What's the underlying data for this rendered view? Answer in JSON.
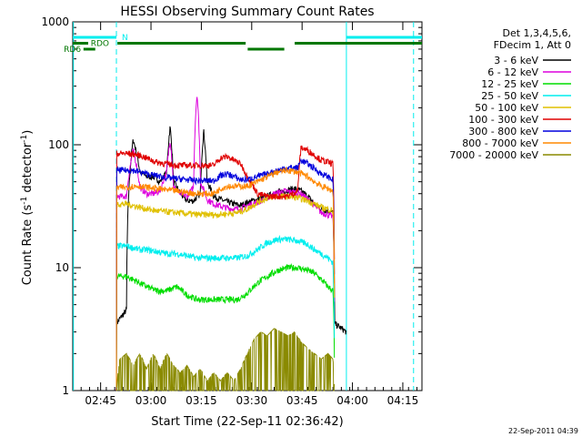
{
  "chart_data": {
    "type": "line",
    "title": "HESSI Observing Summary Count Rates",
    "xlabel": "Start Time (22-Sep-11 02:36:42)",
    "ylabel_main": "Count Rate (s",
    "ylabel_sup": "-1",
    "ylabel_mid": " detector",
    "ylabel_sup2": "-1",
    "ylabel_end": ")",
    "y_scale": "log",
    "ylim": [
      1,
      1000
    ],
    "xlim_minutes": [
      0,
      104
    ],
    "x_ticks": [
      {
        "label": "02:45",
        "minute": 8.3
      },
      {
        "label": "03:00",
        "minute": 23.3
      },
      {
        "label": "03:15",
        "minute": 38.3
      },
      {
        "label": "03:30",
        "minute": 53.3
      },
      {
        "label": "03:45",
        "minute": 68.3
      },
      {
        "label": "04:00",
        "minute": 83.3
      },
      {
        "label": "04:15",
        "minute": 98.3
      }
    ],
    "y_ticks": [
      {
        "label": "1",
        "value": 1
      },
      {
        "label": "10",
        "value": 10
      },
      {
        "label": "100",
        "value": 100
      },
      {
        "label": "1000",
        "value": 1000
      }
    ],
    "legend_header": [
      "Det 1,3,4,5,6,",
      "FDecim 1, Att 0"
    ],
    "data_window_minutes": [
      13.0,
      81.5
    ],
    "series": [
      {
        "name": "3 - 6 keV",
        "color": "#000000",
        "points": [
          [
            13.0,
            3.5
          ],
          [
            16.0,
            4.5
          ],
          [
            18.0,
            110
          ],
          [
            20.0,
            60
          ],
          [
            22,
            55
          ],
          [
            24,
            55
          ],
          [
            26,
            50
          ],
          [
            28,
            60
          ],
          [
            29,
            140
          ],
          [
            30,
            50
          ],
          [
            32,
            40
          ],
          [
            34,
            35
          ],
          [
            36,
            35
          ],
          [
            38,
            40
          ],
          [
            39,
            130
          ],
          [
            40,
            50
          ],
          [
            42,
            38
          ],
          [
            45,
            35
          ],
          [
            48,
            33
          ],
          [
            50,
            32
          ],
          [
            52,
            34
          ],
          [
            55,
            36
          ],
          [
            58,
            38
          ],
          [
            60,
            40
          ],
          [
            63,
            42
          ],
          [
            66,
            44
          ],
          [
            68,
            42
          ],
          [
            70,
            38
          ],
          [
            72,
            33
          ],
          [
            74,
            30
          ],
          [
            76,
            29
          ],
          [
            77.5,
            28
          ],
          [
            78,
            3.5
          ],
          [
            81.5,
            3.0
          ]
        ]
      },
      {
        "name": "6 - 12 keV",
        "color": "#dd00dd",
        "points": [
          [
            13.0,
            0
          ],
          [
            13.1,
            38
          ],
          [
            16,
            38
          ],
          [
            18,
            90
          ],
          [
            20,
            45
          ],
          [
            22,
            40
          ],
          [
            24,
            40
          ],
          [
            26,
            42
          ],
          [
            28,
            60
          ],
          [
            29,
            110
          ],
          [
            30,
            45
          ],
          [
            32,
            40
          ],
          [
            34,
            38
          ],
          [
            36,
            45
          ],
          [
            37,
            260
          ],
          [
            38,
            50
          ],
          [
            40,
            36
          ],
          [
            42,
            33
          ],
          [
            45,
            31
          ],
          [
            48,
            30
          ],
          [
            50,
            30
          ],
          [
            52,
            32
          ],
          [
            55,
            34
          ],
          [
            58,
            37
          ],
          [
            60,
            40
          ],
          [
            63,
            42
          ],
          [
            66,
            41
          ],
          [
            68,
            40
          ],
          [
            70,
            36
          ],
          [
            72,
            32
          ],
          [
            74,
            28
          ],
          [
            76,
            27
          ],
          [
            77.5,
            26
          ],
          [
            78,
            1
          ]
        ]
      },
      {
        "name": "12 - 25 keV",
        "color": "#00dd00",
        "points": [
          [
            13.0,
            1
          ],
          [
            13.1,
            8.5
          ],
          [
            16,
            8.5
          ],
          [
            18,
            8
          ],
          [
            20,
            7.5
          ],
          [
            22,
            7
          ],
          [
            25,
            6.5
          ],
          [
            28,
            6.5
          ],
          [
            31,
            7
          ],
          [
            34,
            6
          ],
          [
            37,
            5.5
          ],
          [
            40,
            5.5
          ],
          [
            43,
            5.5
          ],
          [
            46,
            5.5
          ],
          [
            49,
            5.5
          ],
          [
            52,
            6.2
          ],
          [
            55,
            7.5
          ],
          [
            58,
            8.5
          ],
          [
            61,
            9.5
          ],
          [
            64,
            10
          ],
          [
            67,
            10
          ],
          [
            70,
            9.5
          ],
          [
            72,
            9
          ],
          [
            74,
            8
          ],
          [
            76,
            7
          ],
          [
            77.5,
            6.5
          ],
          [
            78,
            1
          ]
        ]
      },
      {
        "name": "25 - 50 keV",
        "color": "#00eeee",
        "points": [
          [
            13.0,
            1
          ],
          [
            13.1,
            15
          ],
          [
            16,
            15
          ],
          [
            18,
            14.5
          ],
          [
            20,
            14
          ],
          [
            22,
            14
          ],
          [
            25,
            13.5
          ],
          [
            28,
            13
          ],
          [
            31,
            13
          ],
          [
            34,
            12.5
          ],
          [
            37,
            12
          ],
          [
            40,
            12
          ],
          [
            43,
            12
          ],
          [
            46,
            12
          ],
          [
            49,
            12
          ],
          [
            52,
            12.5
          ],
          [
            55,
            14
          ],
          [
            58,
            16
          ],
          [
            61,
            17
          ],
          [
            64,
            17
          ],
          [
            67,
            16.5
          ],
          [
            70,
            15.5
          ],
          [
            72,
            14
          ],
          [
            74,
            13
          ],
          [
            76,
            12
          ],
          [
            77.5,
            11
          ],
          [
            78,
            1
          ]
        ]
      },
      {
        "name": "50 - 100 keV",
        "color": "#e0c000",
        "points": [
          [
            13.0,
            1
          ],
          [
            13.1,
            33
          ],
          [
            16,
            33
          ],
          [
            18,
            32
          ],
          [
            20,
            31
          ],
          [
            22,
            30
          ],
          [
            25,
            29
          ],
          [
            28,
            28.5
          ],
          [
            31,
            28
          ],
          [
            34,
            27.5
          ],
          [
            37,
            27
          ],
          [
            40,
            27
          ],
          [
            43,
            27
          ],
          [
            46,
            27.5
          ],
          [
            49,
            28
          ],
          [
            52,
            30
          ],
          [
            55,
            34
          ],
          [
            58,
            37
          ],
          [
            61,
            38
          ],
          [
            64,
            38
          ],
          [
            67,
            37
          ],
          [
            70,
            35
          ],
          [
            72,
            33
          ],
          [
            74,
            31
          ],
          [
            76,
            30
          ],
          [
            77.5,
            29
          ],
          [
            78,
            1
          ]
        ]
      },
      {
        "name": "100 - 300 keV",
        "color": "#e00000",
        "points": [
          [
            13.0,
            1
          ],
          [
            13.1,
            85
          ],
          [
            16,
            85
          ],
          [
            18,
            84
          ],
          [
            20,
            82
          ],
          [
            22,
            78
          ],
          [
            25,
            72
          ],
          [
            28,
            70
          ],
          [
            31,
            68
          ],
          [
            34,
            68
          ],
          [
            37,
            68
          ],
          [
            40,
            68
          ],
          [
            42,
            68
          ],
          [
            44,
            78
          ],
          [
            46,
            80
          ],
          [
            48,
            75
          ],
          [
            50,
            70
          ],
          [
            52,
            55
          ],
          [
            55,
            40
          ],
          [
            58,
            38
          ],
          [
            61,
            38
          ],
          [
            64,
            38
          ],
          [
            67,
            42
          ],
          [
            68,
            95
          ],
          [
            70,
            90
          ],
          [
            72,
            82
          ],
          [
            74,
            75
          ],
          [
            76,
            72
          ],
          [
            77.5,
            70
          ],
          [
            78,
            1
          ]
        ]
      },
      {
        "name": "300 - 800 keV",
        "color": "#0000dd",
        "points": [
          [
            13.0,
            1
          ],
          [
            13.1,
            62
          ],
          [
            16,
            62
          ],
          [
            18,
            62
          ],
          [
            20,
            60
          ],
          [
            22,
            58
          ],
          [
            25,
            56
          ],
          [
            28,
            54
          ],
          [
            31,
            53
          ],
          [
            34,
            52
          ],
          [
            37,
            51
          ],
          [
            40,
            51
          ],
          [
            42,
            51
          ],
          [
            44,
            56
          ],
          [
            46,
            58
          ],
          [
            48,
            55
          ],
          [
            50,
            52
          ],
          [
            52,
            52
          ],
          [
            55,
            55
          ],
          [
            58,
            58
          ],
          [
            61,
            62
          ],
          [
            64,
            65
          ],
          [
            67,
            65
          ],
          [
            68,
            75
          ],
          [
            70,
            70
          ],
          [
            72,
            64
          ],
          [
            74,
            58
          ],
          [
            76,
            55
          ],
          [
            77.5,
            52
          ],
          [
            78,
            1
          ]
        ]
      },
      {
        "name": "800 - 7000 keV",
        "color": "#ff8800",
        "points": [
          [
            13.0,
            1
          ],
          [
            13.1,
            45
          ],
          [
            16,
            45
          ],
          [
            18,
            46
          ],
          [
            20,
            46
          ],
          [
            22,
            45
          ],
          [
            25,
            44
          ],
          [
            28,
            43
          ],
          [
            31,
            42
          ],
          [
            34,
            41
          ],
          [
            37,
            40
          ],
          [
            40,
            40
          ],
          [
            42,
            40
          ],
          [
            44,
            44
          ],
          [
            46,
            46
          ],
          [
            48,
            46
          ],
          [
            50,
            46
          ],
          [
            52,
            46
          ],
          [
            55,
            50
          ],
          [
            58,
            55
          ],
          [
            61,
            60
          ],
          [
            64,
            62
          ],
          [
            67,
            60
          ],
          [
            70,
            55
          ],
          [
            72,
            50
          ],
          [
            74,
            46
          ],
          [
            76,
            44
          ],
          [
            77.5,
            42
          ],
          [
            78,
            1
          ]
        ]
      },
      {
        "name": "7000 - 20000 keV",
        "color": "#8a8a00",
        "points": [
          [
            13.0,
            1
          ],
          [
            14,
            1.8
          ],
          [
            16,
            2.0
          ],
          [
            18,
            1.6
          ],
          [
            20,
            2.0
          ],
          [
            22,
            1.5
          ],
          [
            24,
            2.0
          ],
          [
            26,
            1.5
          ],
          [
            28,
            2.0
          ],
          [
            30,
            1.6
          ],
          [
            32,
            1.4
          ],
          [
            34,
            1.6
          ],
          [
            36,
            1.3
          ],
          [
            38,
            1.5
          ],
          [
            40,
            1.2
          ],
          [
            42,
            1.4
          ],
          [
            44,
            1.2
          ],
          [
            46,
            1.4
          ],
          [
            48,
            1.2
          ],
          [
            50,
            1.5
          ],
          [
            52,
            2.0
          ],
          [
            54,
            2.6
          ],
          [
            56,
            3.0
          ],
          [
            58,
            2.8
          ],
          [
            60,
            3.2
          ],
          [
            62,
            3.0
          ],
          [
            64,
            2.8
          ],
          [
            66,
            3.0
          ],
          [
            68,
            2.5
          ],
          [
            70,
            2.2
          ],
          [
            72,
            2.0
          ],
          [
            74,
            1.8
          ],
          [
            76,
            2.0
          ],
          [
            77.5,
            1.8
          ],
          [
            78,
            1
          ]
        ]
      }
    ],
    "state_bars": [
      {
        "label": "N",
        "color": "#00eeee",
        "level": 1,
        "segments": [
          [
            0,
            13.0
          ],
          [
            81.5,
            104
          ]
        ]
      },
      {
        "label": "RDO",
        "color": "#007700",
        "level": 2,
        "segments": [
          [
            0,
            4.6
          ],
          [
            13.3,
            51.5
          ],
          [
            66.1,
            104
          ]
        ]
      },
      {
        "label": "RD6",
        "color": "#007700",
        "level": 3,
        "segments": [
          [
            3.2,
            6.7
          ],
          [
            52.1,
            63.0
          ]
        ]
      }
    ],
    "vertical_lines": [
      {
        "minute": 13.0,
        "style": "dashed",
        "color": "#00eeee"
      },
      {
        "minute": 81.5,
        "style": "solid",
        "color": "#00eeee"
      },
      {
        "minute": 101.5,
        "style": "dashed",
        "color": "#00eeee"
      },
      {
        "minute": 0.2,
        "style": "solid",
        "color": "#00eeee"
      }
    ]
  },
  "footer_timestamp": "22-Sep-2011 04:39"
}
